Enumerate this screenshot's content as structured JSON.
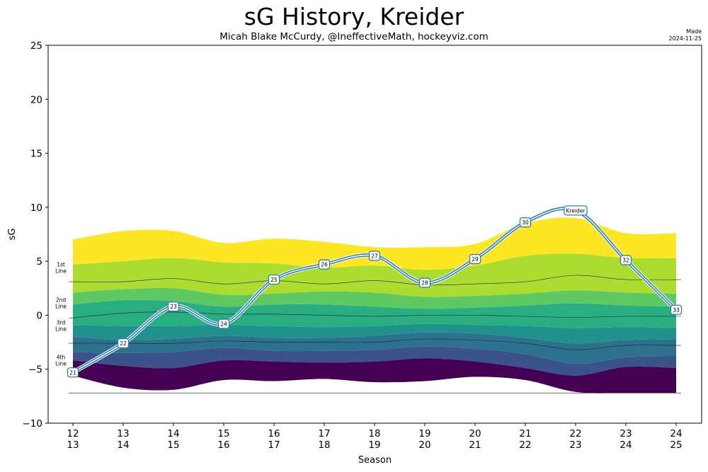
{
  "header": {
    "title": "sG History, Kreider",
    "subtitle": "Micah Blake McCurdy, @IneffectiveMath, hockeyviz.com",
    "made_label": "Made",
    "made_date": "2024-11-25"
  },
  "chart_data": {
    "type": "area",
    "title": "sG History, Kreider",
    "subtitle": "Micah Blake McCurdy, @IneffectiveMath, hockeyviz.com",
    "xlabel": "Season",
    "ylabel": "sG",
    "ylim": [
      -10,
      25
    ],
    "yticks": [
      -10,
      -5,
      0,
      5,
      10,
      15,
      20,
      25
    ],
    "grid": false,
    "seasons": [
      "12\n13",
      "13\n14",
      "14\n15",
      "15\n16",
      "16\n17",
      "17\n18",
      "18\n19",
      "19\n20",
      "20\n21",
      "21\n22",
      "22\n23",
      "23\n24",
      "24\n25"
    ],
    "band_colors": [
      "#440154",
      "#472d7b",
      "#3b528b",
      "#2c728e",
      "#21918c",
      "#28ae80",
      "#5ec962",
      "#addc30",
      "#fde725"
    ],
    "band_boundaries": [
      [
        -5.6,
        -6.7,
        -6.9,
        -6.0,
        -6.1,
        -5.9,
        -6.2,
        -6.1,
        -5.7,
        -6.0,
        -7.1,
        -7.2,
        -7.2
      ],
      [
        -4.2,
        -4.7,
        -4.9,
        -4.2,
        -4.3,
        -4.4,
        -4.3,
        -4.0,
        -4.3,
        -4.9,
        -5.6,
        -4.8,
        -4.9
      ],
      [
        -3.4,
        -3.5,
        -3.4,
        -3.0,
        -3.3,
        -3.3,
        -3.2,
        -2.9,
        -3.1,
        -3.6,
        -4.5,
        -3.9,
        -3.8
      ],
      [
        -2.0,
        -2.3,
        -2.2,
        -1.9,
        -2.1,
        -2.1,
        -1.9,
        -1.6,
        -1.7,
        -2.1,
        -2.6,
        -2.3,
        -2.2
      ],
      [
        -0.9,
        -1.0,
        -1.0,
        -0.9,
        -1.0,
        -1.1,
        -1.0,
        -0.8,
        -0.9,
        -1.0,
        -1.2,
        -1.1,
        -1.2
      ],
      [
        1.0,
        1.4,
        1.3,
        0.8,
        1.0,
        1.0,
        0.8,
        0.6,
        0.7,
        0.9,
        1.1,
        0.9,
        0.8
      ],
      [
        2.1,
        2.4,
        2.5,
        1.9,
        2.0,
        2.2,
        2.1,
        1.7,
        1.8,
        2.0,
        2.3,
        2.1,
        2.0
      ],
      [
        4.7,
        5.0,
        5.3,
        4.9,
        4.8,
        4.4,
        4.6,
        4.2,
        4.6,
        5.5,
        5.7,
        5.3,
        5.3
      ],
      [
        7.0,
        7.8,
        7.8,
        6.7,
        7.1,
        6.8,
        6.3,
        6.3,
        6.6,
        8.5,
        9.0,
        7.6,
        7.6
      ]
    ],
    "line_dividers": [
      [
        3.1,
        3.1,
        3.4,
        2.9,
        3.2,
        2.9,
        3.2,
        2.8,
        2.9,
        3.1,
        3.7,
        3.3,
        3.3
      ],
      [
        -0.3,
        0.2,
        0.3,
        0.1,
        0.1,
        0.0,
        -0.1,
        0.0,
        0.0,
        -0.1,
        -0.2,
        -0.1,
        -0.1
      ],
      [
        -2.6,
        -2.6,
        -2.6,
        -2.4,
        -2.5,
        -2.5,
        -2.5,
        -2.2,
        -2.3,
        -2.6,
        -3.2,
        -2.8,
        -2.8
      ],
      [
        -7.2,
        -7.2,
        -7.2,
        -7.2,
        -7.2,
        -7.2,
        -7.2,
        -7.2,
        -7.2,
        -7.2,
        -7.2,
        -7.2,
        -7.2
      ]
    ],
    "line_labels": [
      {
        "text": "1st\nLine",
        "y": 4.4
      },
      {
        "text": "2nd\nLine",
        "y": 1.1
      },
      {
        "text": "3rd\nLine",
        "y": -1.0
      },
      {
        "text": "4th\nLine",
        "y": -4.2
      }
    ],
    "series": [
      {
        "name": "Kreider",
        "label": "Kreider",
        "color": "#1f77b4",
        "points": [
          {
            "x": 0,
            "y": -5.3,
            "label": "21"
          },
          {
            "x": 1,
            "y": -2.6,
            "label": "22"
          },
          {
            "x": 2,
            "y": 0.8,
            "label": "23"
          },
          {
            "x": 3,
            "y": -0.8,
            "label": "24"
          },
          {
            "x": 4,
            "y": 3.3,
            "label": "25"
          },
          {
            "x": 5,
            "y": 4.7,
            "label": "26"
          },
          {
            "x": 6,
            "y": 5.5,
            "label": "27"
          },
          {
            "x": 7,
            "y": 3.0,
            "label": "28"
          },
          {
            "x": 8,
            "y": 5.2,
            "label": "29"
          },
          {
            "x": 9,
            "y": 8.6,
            "label": "30"
          },
          {
            "x": 10,
            "y": 9.7,
            "label": "Kreider"
          },
          {
            "x": 11,
            "y": 5.1,
            "label": "32"
          },
          {
            "x": 12,
            "y": 0.5,
            "label": "33"
          }
        ]
      }
    ]
  }
}
